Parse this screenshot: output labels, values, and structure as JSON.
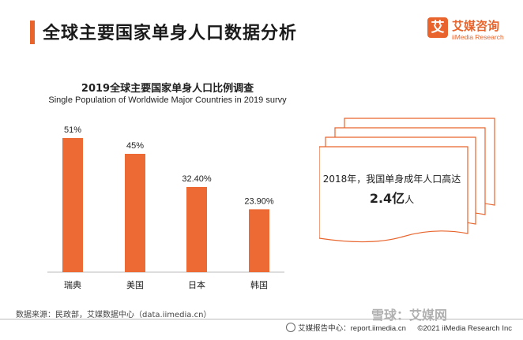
{
  "header": {
    "title": "全球主要国家单身人口数据分析",
    "accent_color": "#e8642c"
  },
  "logo": {
    "mark": "艾",
    "name_cn": "艾媒咨询",
    "name_en": "iiMedia Research"
  },
  "chart_data": {
    "type": "bar",
    "title": "2019全球主要国家单身人口比例调查",
    "subtitle": "Single Population of Worldwide Major Countries in 2019 survy",
    "categories": [
      "瑞典",
      "美国",
      "日本",
      "韩国"
    ],
    "values": [
      51,
      45,
      32.4,
      23.9
    ],
    "value_labels": [
      "51%",
      "45%",
      "32.40%",
      "23.90%"
    ],
    "ylim": [
      0,
      60
    ],
    "grid": false,
    "legend": "none",
    "bar_color": "#ee6a35"
  },
  "note": {
    "text": "2018年，我国单身成年人口高达",
    "value": "2.4亿",
    "unit": "人"
  },
  "footer": {
    "source": "数据来源：民政部，艾媒数据中心（data.iimedia.cn）",
    "report": "艾媒报告中心：report.iimedia.cn",
    "copyright": "©2021  iiMedia Research  Inc",
    "watermark": "雪球：艾媒网"
  }
}
